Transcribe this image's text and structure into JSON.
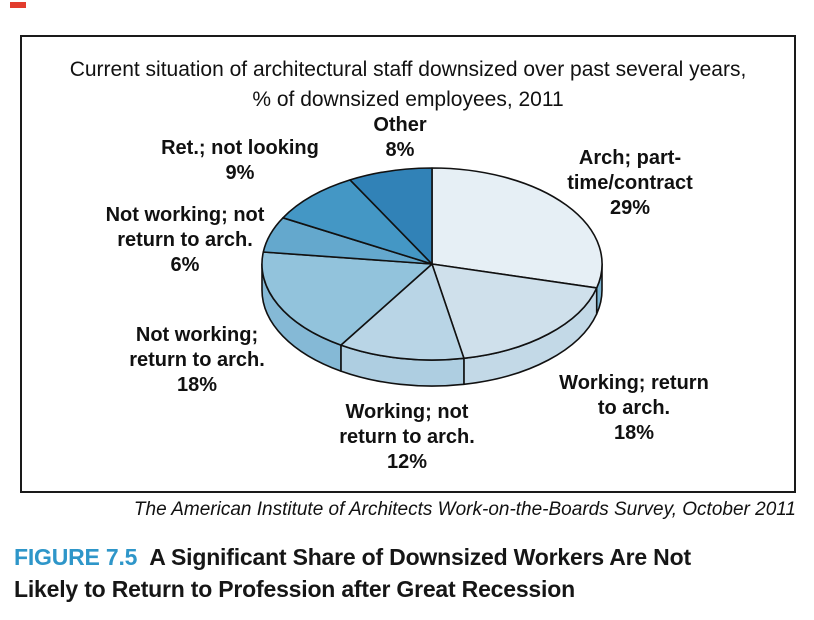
{
  "figure": {
    "chart_title_line1": "Current situation of architectural staff downsized over past several years,",
    "chart_title_line2": "% of downsized employees, 2011",
    "source": "The American Institute of Architects Work-on-the-Boards Survey, October 2011",
    "caption_label": "FIGURE 7.5",
    "caption_line1": "A Significant Share of Downsized Workers Are Not",
    "caption_line2": "Likely to Return to Profession after Great Recession",
    "caption_accent_color": "#2e96c9",
    "box_border_color": "#1a1a1a"
  },
  "chart_data": {
    "type": "pie",
    "style": "3d-exploded-none",
    "title": "Current situation of architectural staff downsized over past several years, % of downsized employees, 2011",
    "unit": "% of downsized employees",
    "start_angle_deg": 0,
    "direction": "clockwise",
    "total": 100,
    "legend": "none (direct labels around pie)",
    "outline_color": "#111111",
    "slices": [
      {
        "name": "arch-part-time-contract",
        "label_lines": [
          "Arch; part-",
          "time/contract"
        ],
        "pct": "29%",
        "value": 29,
        "color": "#e6eff5",
        "side_color": "#7db6d4"
      },
      {
        "name": "working-return-to-arch",
        "label_lines": [
          "Working; return",
          "to arch."
        ],
        "pct": "18%",
        "value": 18,
        "color": "#cfe0eb",
        "side_color": "#c3d9e7"
      },
      {
        "name": "working-not-return-to-arch",
        "label_lines": [
          "Working; not",
          "return to arch."
        ],
        "pct": "12%",
        "value": 12,
        "color": "#b9d5e6",
        "side_color": "#aecee1"
      },
      {
        "name": "not-working-return-to-arch",
        "label_lines": [
          "Not working;",
          "return to arch."
        ],
        "pct": "18%",
        "value": 18,
        "color": "#92c3dc",
        "side_color": "#85b9d6"
      },
      {
        "name": "not-working-not-return-to-arch",
        "label_lines": [
          "Not working; not",
          "return to arch."
        ],
        "pct": "6%",
        "value": 6,
        "color": "#64a8cd",
        "side_color": "#64a8cd"
      },
      {
        "name": "retired-not-looking",
        "label_lines": [
          "Ret.; not looking"
        ],
        "pct": "9%",
        "value": 9,
        "color": "#4497c5",
        "side_color": "#4497c5"
      },
      {
        "name": "other",
        "label_lines": [
          "Other"
        ],
        "pct": "8%",
        "value": 8,
        "color": "#3182b7",
        "side_color": "#3182b7"
      }
    ]
  }
}
